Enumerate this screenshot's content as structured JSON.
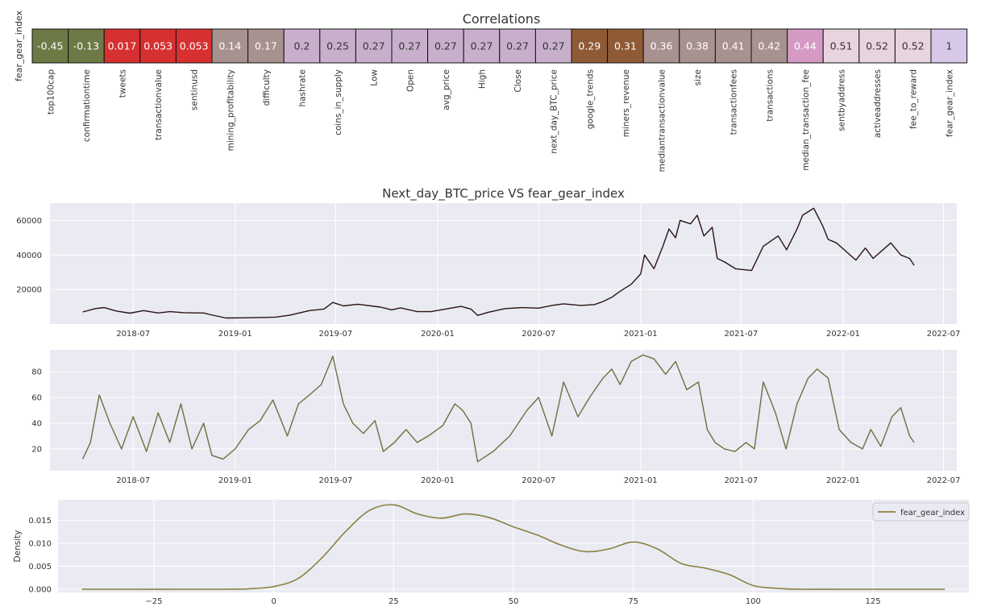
{
  "chart_data": [
    {
      "type": "heatmap",
      "title": "Correlations",
      "row_label": "fear_gear_index",
      "columns": [
        "top100cap",
        "confirmationtime",
        "tweets",
        "transactionvalue",
        "sentinusd",
        "mining_profitability",
        "difficulty",
        "hashrate",
        "coins_in_supply",
        "Low",
        "Open",
        "avg_price",
        "High",
        "Close",
        "next_day_BTC_price",
        "google_trends",
        "miners_revenue",
        "mediantransactionvalue",
        "size",
        "transactionfees",
        "transactions",
        "median_transaction_fee",
        "sentbyaddress",
        "activeaddresses",
        "fee_to_reward",
        "fear_gear_index"
      ],
      "values": [
        -0.45,
        -0.13,
        0.017,
        0.053,
        0.053,
        0.14,
        0.17,
        0.2,
        0.25,
        0.27,
        0.27,
        0.27,
        0.27,
        0.27,
        0.27,
        0.29,
        0.31,
        0.36,
        0.38,
        0.41,
        0.42,
        0.44,
        0.51,
        0.52,
        0.52,
        1
      ],
      "labels": [
        "-0.45",
        "-0.13",
        "0.017",
        "0.053",
        "0.053",
        "0.14",
        "0.17",
        "0.2",
        "0.25",
        "0.27",
        "0.27",
        "0.27",
        "0.27",
        "0.27",
        "0.27",
        "0.29",
        "0.31",
        "0.36",
        "0.38",
        "0.41",
        "0.42",
        "0.44",
        "0.51",
        "0.52",
        "0.52",
        "1"
      ],
      "cell_colors": [
        "#6e7a45",
        "#6e7a45",
        "#d63030",
        "#d63030",
        "#d63030",
        "#a89290",
        "#a89290",
        "#c8b0cc",
        "#c8b0cc",
        "#c8b0cc",
        "#c8b0cc",
        "#c8b0cc",
        "#c8b0cc",
        "#c8b0cc",
        "#c8b0cc",
        "#8f5a35",
        "#8f5a35",
        "#a89290",
        "#a89290",
        "#a89290",
        "#a89290",
        "#d49ac4",
        "#e8d4df",
        "#e8d4df",
        "#e8d4df",
        "#d8c8e8"
      ],
      "label_colors": [
        "#ffffff",
        "#ffffff",
        "#ffffff",
        "#ffffff",
        "#ffffff",
        "#ffffff",
        "#ffffff",
        "#333333",
        "#333333",
        "#333333",
        "#333333",
        "#333333",
        "#333333",
        "#333333",
        "#333333",
        "#ffffff",
        "#ffffff",
        "#ffffff",
        "#ffffff",
        "#ffffff",
        "#ffffff",
        "#ffffff",
        "#333333",
        "#333333",
        "#333333",
        "#333333"
      ]
    },
    {
      "type": "line",
      "title": "Next_day_BTC_price VS fear_gear_index",
      "xlabel": "",
      "ylabel": "",
      "x_type": "date",
      "xlim": [
        "2018-02-01",
        "2022-07-25"
      ],
      "ylim": [
        0,
        70000
      ],
      "x_ticks": [
        "2018-07",
        "2019-01",
        "2019-07",
        "2020-01",
        "2020-07",
        "2021-01",
        "2021-07",
        "2022-01",
        "2022-07"
      ],
      "y_ticks": [
        20000,
        40000,
        60000
      ],
      "color": "#2a1414",
      "grid": true,
      "series": [
        {
          "x": [
            "2018-04-01",
            "2018-04-25",
            "2018-05-10",
            "2018-06-01",
            "2018-06-25",
            "2018-07-20",
            "2018-08-15",
            "2018-09-05",
            "2018-10-01",
            "2018-11-05",
            "2018-11-15",
            "2018-12-15",
            "2019-01-15",
            "2019-02-15",
            "2019-03-15",
            "2019-04-10",
            "2019-05-15",
            "2019-06-10",
            "2019-06-26",
            "2019-07-15",
            "2019-08-10",
            "2019-09-20",
            "2019-10-10",
            "2019-10-26",
            "2019-11-25",
            "2019-12-20",
            "2020-01-15",
            "2020-02-12",
            "2020-03-01",
            "2020-03-13",
            "2020-04-01",
            "2020-05-01",
            "2020-06-01",
            "2020-07-01",
            "2020-07-25",
            "2020-08-15",
            "2020-09-15",
            "2020-10-10",
            "2020-10-25",
            "2020-11-10",
            "2020-11-25",
            "2020-12-15",
            "2021-01-01",
            "2021-01-08",
            "2021-01-25",
            "2021-02-10",
            "2021-02-21",
            "2021-03-05",
            "2021-03-13",
            "2021-04-01",
            "2021-04-13",
            "2021-04-25",
            "2021-05-10",
            "2021-05-19",
            "2021-06-01",
            "2021-06-21",
            "2021-07-20",
            "2021-08-10",
            "2021-09-06",
            "2021-09-21",
            "2021-10-10",
            "2021-10-20",
            "2021-11-09",
            "2021-11-25",
            "2021-12-05",
            "2021-12-20",
            "2022-01-10",
            "2022-01-24",
            "2022-02-10",
            "2022-02-24",
            "2022-03-28",
            "2022-04-15",
            "2022-05-01",
            "2022-05-09"
          ],
          "y": [
            7000,
            9000,
            9500,
            7500,
            6300,
            7800,
            6400,
            7200,
            6600,
            6400,
            5600,
            3500,
            3600,
            3800,
            4000,
            5200,
            7800,
            8700,
            12500,
            10500,
            11500,
            9800,
            8200,
            9400,
            7200,
            7200,
            8700,
            10200,
            8700,
            5000,
            6800,
            8900,
            9500,
            9200,
            10800,
            11700,
            10800,
            11300,
            13000,
            15500,
            19000,
            23000,
            29000,
            40000,
            32000,
            45000,
            55000,
            50000,
            60000,
            58000,
            63000,
            51000,
            56000,
            38000,
            36000,
            32000,
            31000,
            45000,
            51000,
            43000,
            55000,
            63000,
            67000,
            57000,
            49000,
            47000,
            41000,
            37000,
            44000,
            38000,
            47000,
            40000,
            38000,
            34000
          ]
        }
      ]
    },
    {
      "type": "line",
      "title": "",
      "xlabel": "",
      "ylabel": "",
      "x_type": "date",
      "xlim": [
        "2018-02-01",
        "2022-07-25"
      ],
      "ylim": [
        3,
        97
      ],
      "x_ticks": [
        "2018-07",
        "2019-01",
        "2019-07",
        "2020-01",
        "2020-07",
        "2021-01",
        "2021-07",
        "2022-01",
        "2022-07"
      ],
      "y_ticks": [
        20,
        40,
        60,
        80
      ],
      "color": "#6b7040",
      "grid": true,
      "series": [
        {
          "x": [
            "2018-04-01",
            "2018-04-15",
            "2018-05-01",
            "2018-05-20",
            "2018-06-10",
            "2018-07-01",
            "2018-07-25",
            "2018-08-15",
            "2018-09-05",
            "2018-09-25",
            "2018-10-15",
            "2018-11-05",
            "2018-11-20",
            "2018-12-10",
            "2019-01-01",
            "2019-01-25",
            "2019-02-15",
            "2019-03-10",
            "2019-04-05",
            "2019-04-25",
            "2019-05-15",
            "2019-06-05",
            "2019-06-26",
            "2019-07-15",
            "2019-08-01",
            "2019-08-20",
            "2019-09-10",
            "2019-09-25",
            "2019-10-15",
            "2019-11-05",
            "2019-11-25",
            "2019-12-15",
            "2020-01-10",
            "2020-02-01",
            "2020-02-15",
            "2020-03-01",
            "2020-03-13",
            "2020-04-10",
            "2020-05-10",
            "2020-06-10",
            "2020-07-01",
            "2020-07-25",
            "2020-08-15",
            "2020-09-10",
            "2020-10-01",
            "2020-10-25",
            "2020-11-10",
            "2020-11-25",
            "2020-12-15",
            "2021-01-05",
            "2021-01-25",
            "2021-02-15",
            "2021-03-05",
            "2021-03-25",
            "2021-04-15",
            "2021-05-01",
            "2021-05-15",
            "2021-06-01",
            "2021-06-20",
            "2021-07-10",
            "2021-07-25",
            "2021-08-10",
            "2021-09-01",
            "2021-09-20",
            "2021-10-10",
            "2021-10-30",
            "2021-11-15",
            "2021-12-05",
            "2021-12-25",
            "2022-01-15",
            "2022-02-05",
            "2022-02-20",
            "2022-03-10",
            "2022-03-30",
            "2022-04-15",
            "2022-05-01",
            "2022-05-09"
          ],
          "y": [
            12,
            25,
            62,
            40,
            20,
            45,
            18,
            48,
            25,
            55,
            20,
            40,
            15,
            12,
            20,
            35,
            42,
            58,
            30,
            55,
            62,
            70,
            92,
            55,
            40,
            32,
            42,
            18,
            25,
            35,
            25,
            30,
            38,
            55,
            50,
            40,
            10,
            18,
            30,
            50,
            60,
            30,
            72,
            45,
            60,
            75,
            82,
            70,
            88,
            93,
            90,
            78,
            88,
            66,
            72,
            35,
            25,
            20,
            18,
            25,
            20,
            72,
            48,
            20,
            55,
            75,
            82,
            75,
            35,
            25,
            20,
            35,
            22,
            45,
            52,
            30,
            25
          ]
        }
      ]
    },
    {
      "type": "area",
      "title": "",
      "xlabel": "",
      "ylabel": "Density",
      "xlim": [
        -45,
        145
      ],
      "ylim": [
        -0.0007,
        0.0195
      ],
      "x_ticks": [
        -25,
        0,
        25,
        50,
        75,
        100,
        125
      ],
      "y_ticks": [
        0.0,
        0.005,
        0.01,
        0.015
      ],
      "y_tick_labels": [
        "0.000",
        "0.005",
        "0.010",
        "0.015"
      ],
      "grid": true,
      "legend": "top-right",
      "series": [
        {
          "name": "fear_gear_index",
          "color": "#8a8040",
          "x": [
            -40,
            -10,
            -5,
            0,
            5,
            10,
            15,
            20,
            25,
            30,
            35,
            40,
            45,
            50,
            55,
            60,
            65,
            70,
            75,
            80,
            85,
            90,
            95,
            100,
            105,
            110,
            120,
            130,
            140
          ],
          "y": [
            0.0,
            0.0,
            0.0001,
            0.0006,
            0.0023,
            0.0068,
            0.0126,
            0.0172,
            0.0184,
            0.0164,
            0.0155,
            0.0164,
            0.0156,
            0.0136,
            0.0118,
            0.0096,
            0.0082,
            0.0088,
            0.0103,
            0.0088,
            0.0056,
            0.0046,
            0.0032,
            0.0008,
            0.0002,
            0.0,
            0.0,
            0.0,
            0.0
          ]
        }
      ]
    }
  ]
}
